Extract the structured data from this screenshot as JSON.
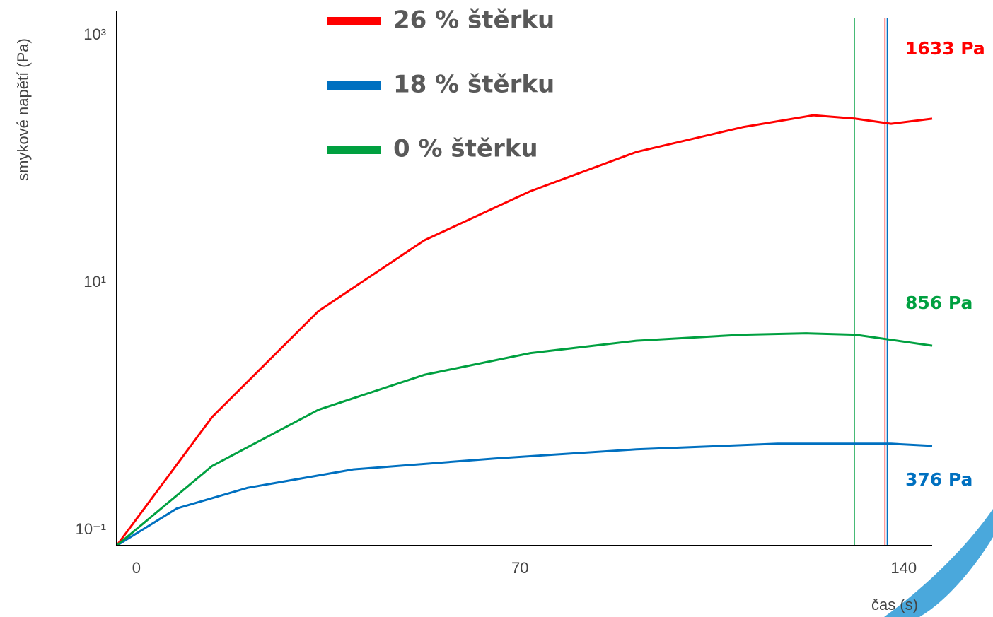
{
  "chart_data": {
    "type": "line",
    "y_label": "smykové napětí (Pa)",
    "x_label": "čas (s)",
    "y_log": true,
    "xlim": [
      -3.6,
      145.2
    ],
    "xticks": [
      0,
      70,
      140
    ],
    "ylim": [
      0.075,
      1585
    ],
    "yticks": [
      {
        "value": 0.1,
        "label": "10⁻¹"
      },
      {
        "value": 10,
        "label": "10¹"
      },
      {
        "value": 1000,
        "label": "10³"
      }
    ],
    "series": [
      {
        "name": "26 % štěrku",
        "color": "#ff0000",
        "x": [
          -3.6,
          13.8,
          33.2,
          52.5,
          71.9,
          91.2,
          110.6,
          123.5,
          131.2,
          137.7,
          145.2
        ],
        "values": [
          0.075,
          0.82,
          5.9,
          22,
          55,
          114,
          181,
          226,
          212,
          193,
          212
        ]
      },
      {
        "name": "18 % štěrku",
        "color": "#0070c0",
        "x": [
          -3.6,
          7.4,
          20.3,
          39.6,
          65.4,
          91.2,
          117,
          130,
          137.7,
          145.2
        ],
        "values": [
          0.075,
          0.15,
          0.22,
          0.31,
          0.38,
          0.45,
          0.5,
          0.5,
          0.5,
          0.48
        ]
      },
      {
        "name": "0 % štěrku",
        "color": "#00a040",
        "x": [
          -3.6,
          13.8,
          33.2,
          52.5,
          71.9,
          91.2,
          110.6,
          122.2,
          131.2,
          145.2
        ],
        "values": [
          0.075,
          0.33,
          0.94,
          1.8,
          2.7,
          3.4,
          3.8,
          3.9,
          3.8,
          3.1
        ]
      }
    ],
    "markers": [
      {
        "x": 131,
        "color": "#00a040"
      },
      {
        "x": 136.6,
        "color": "#ff0000"
      },
      {
        "x": 137,
        "color": "#0070c0"
      }
    ],
    "annotations": [
      {
        "text": "1633 Pa",
        "color": "#ff0000"
      },
      {
        "text": "856 Pa",
        "color": "#00a040"
      },
      {
        "text": "376 Pa",
        "color": "#0070c0"
      }
    ]
  }
}
